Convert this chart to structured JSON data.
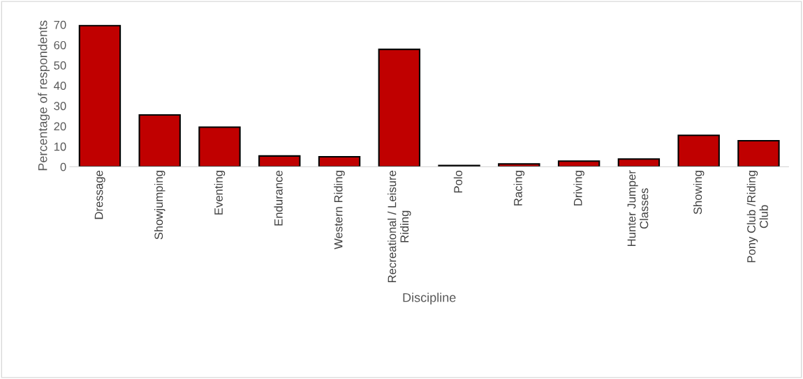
{
  "chart_data": {
    "type": "bar",
    "categories": [
      "Dressage",
      "Showjumping",
      "Eventing",
      "Endurance",
      "Western Riding",
      "Recreational / Leisure\nRiding",
      "Polo",
      "Racing",
      "Driving",
      "Hunter Jumper\nClasses",
      "Showing",
      "Pony Club /Riding\nClub"
    ],
    "values": [
      69.5,
      25.5,
      19.5,
      5.3,
      4.9,
      57.8,
      0.6,
      1.4,
      2.8,
      3.8,
      15.5,
      12.8
    ],
    "color": "#c00000",
    "xlabel": "Discipline",
    "ylabel": "Percentage of respondents",
    "ylim": [
      0,
      70
    ],
    "yticks": [
      0,
      10,
      20,
      30,
      40,
      50,
      60,
      70
    ],
    "grid": false
  }
}
